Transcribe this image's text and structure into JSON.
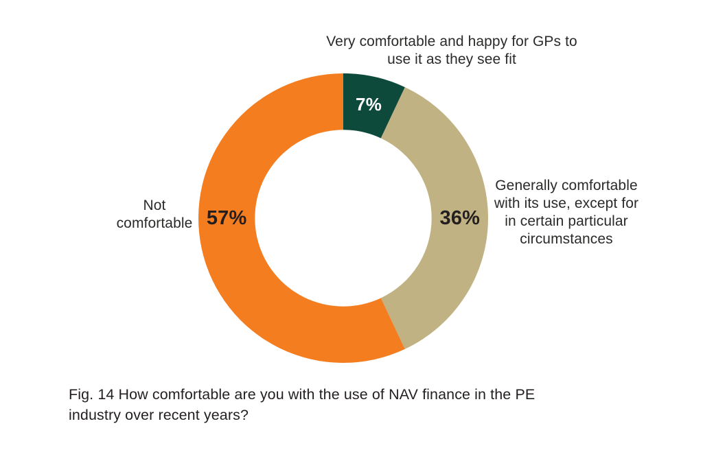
{
  "caption": "Fig. 14 How comfortable are you with the use of NAV finance in the PE industry over recent years?",
  "colors": {
    "background": "#FFFFFF",
    "text": "#2B2A29",
    "caption_text": "#231F20"
  },
  "chart_data": {
    "type": "pie",
    "variant": "donut",
    "title": "",
    "legend_position": "callout-labels",
    "inner_radius_ratio": 0.61,
    "start_angle_deg": 0,
    "direction": "clockwise",
    "segments": [
      {
        "label": "Very comfortable and happy for GPs to use it as they see fit",
        "value": 7,
        "value_label": "7%",
        "color": "#0E4A3C",
        "value_label_color": "#FFFFFF",
        "value_label_angle_deg": 12.6,
        "value_label_font_px": 26
      },
      {
        "label": "Generally comfortable with its use, except for in certain particular circumstances",
        "value": 36,
        "value_label": "36%",
        "color": "#C1B283",
        "value_label_color": "#231F20",
        "value_label_angle_deg": 90,
        "value_label_font_px": 29
      },
      {
        "label": "Not comfortable",
        "value": 57,
        "value_label": "57%",
        "color": "#F47D20",
        "value_label_color": "#231F20",
        "value_label_angle_deg": 270,
        "value_label_font_px": 29
      }
    ]
  }
}
